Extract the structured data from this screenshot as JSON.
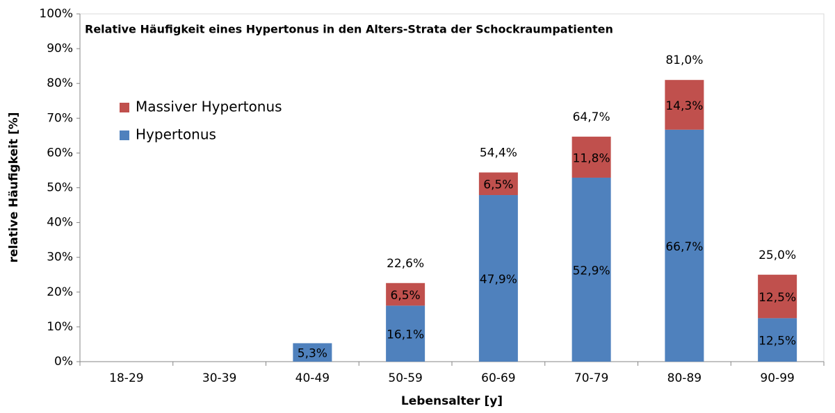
{
  "chart_data": {
    "type": "stacked_bar",
    "title": "Relative Häufigkeit eines Hypertonus in den Alters-Strata der Schockraumpatienten",
    "x_label": "Lebensalter [y]",
    "y_label": "relative Häufigkeit [%]",
    "categories": [
      "18-29",
      "30-39",
      "40-49",
      "50-59",
      "60-69",
      "70-79",
      "80-89",
      "90-99"
    ],
    "series": [
      {
        "name": "Hypertonus",
        "color": "#4f81bd",
        "values": [
          null,
          null,
          5.3,
          16.1,
          47.9,
          52.9,
          66.7,
          12.5
        ],
        "value_labels": [
          null,
          null,
          "5,3%",
          "16,1%",
          "47,9%",
          "52,9%",
          "66,7%",
          "12,5%"
        ]
      },
      {
        "name": "Massiver Hypertonus",
        "color": "#c0504d",
        "values": [
          null,
          null,
          null,
          6.5,
          6.5,
          11.8,
          14.3,
          12.5
        ],
        "value_labels": [
          null,
          null,
          null,
          "6,5%",
          "6,5%",
          "11,8%",
          "14,3%",
          "12,5%"
        ]
      }
    ],
    "total_labels": [
      null,
      null,
      null,
      "22,6%",
      "54,4%",
      "64,7%",
      "81,0%",
      "25,0%"
    ],
    "ylim": [
      0,
      100
    ],
    "yticks": [
      {
        "value": 0,
        "label": "0%"
      },
      {
        "value": 10,
        "label": "10%"
      },
      {
        "value": 20,
        "label": "20%"
      },
      {
        "value": 30,
        "label": "30%"
      },
      {
        "value": 40,
        "label": "40%"
      },
      {
        "value": 50,
        "label": "50%"
      },
      {
        "value": 60,
        "label": "60%"
      },
      {
        "value": 70,
        "label": "70%"
      },
      {
        "value": 80,
        "label": "80%"
      },
      {
        "value": 90,
        "label": "90%"
      },
      {
        "value": 100,
        "label": "100%"
      }
    ],
    "legend": "upper left"
  }
}
